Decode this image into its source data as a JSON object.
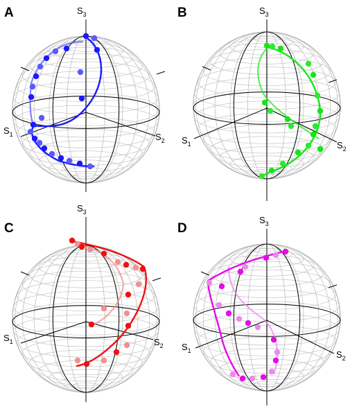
{
  "panels": [
    {
      "letter": "A",
      "axes": {
        "s1": "S",
        "s1_sub": "1",
        "s2": "S",
        "s2_sub": "2",
        "s3": "S",
        "s3_sub": "3"
      },
      "colors": {
        "primary": "#1a1aff",
        "secondary": "#5a5aff"
      }
    },
    {
      "letter": "B",
      "axes": {
        "s1": "S",
        "s1_sub": "1",
        "s2": "S",
        "s2_sub": "2",
        "s3": "S",
        "s3_sub": "3"
      },
      "colors": {
        "primary": "#14e614",
        "secondary": "#2ee82e"
      }
    },
    {
      "letter": "C",
      "axes": {
        "s1": "S",
        "s1_sub": "1",
        "s2": "S",
        "s2_sub": "2",
        "s3": "S",
        "s3_sub": "3"
      },
      "colors": {
        "primary": "#ee1111",
        "secondary": "#f39090"
      }
    },
    {
      "letter": "D",
      "axes": {
        "s1": "S",
        "s1_sub": "1",
        "s2": "S",
        "s2_sub": "2",
        "s3": "S",
        "s3_sub": "3"
      },
      "colors": {
        "primary": "#e60be6",
        "secondary": "#ee88ee"
      }
    }
  ]
}
